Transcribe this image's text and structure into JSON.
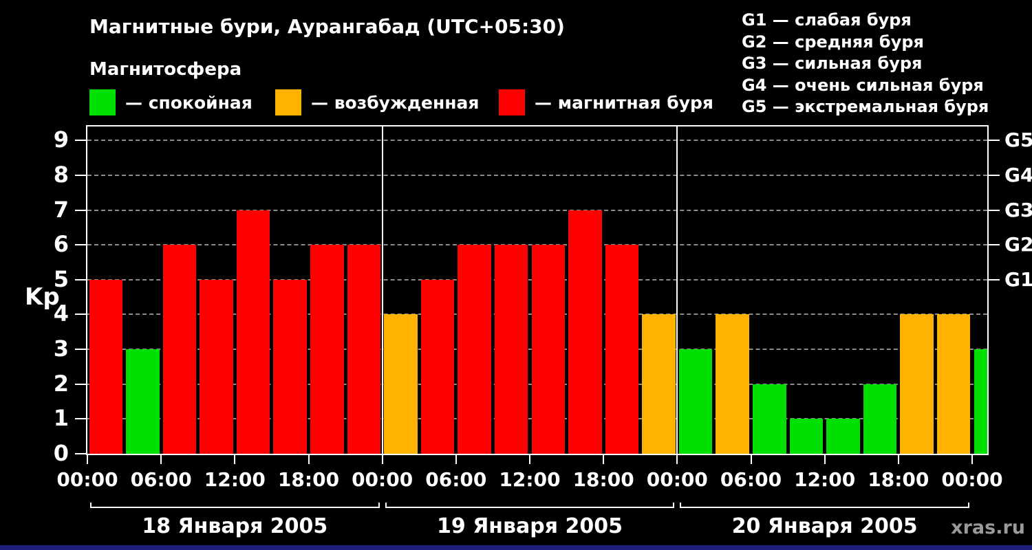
{
  "header": {
    "title": "Магнитные бури, Аурангабад (UTC+05:30)",
    "subtitle": "Магнитосфера"
  },
  "legend": {
    "items": [
      {
        "label": "— спокойная",
        "color": "#00e000",
        "key": "quiet"
      },
      {
        "label": "— возбужденная",
        "color": "#ffb300",
        "key": "excited"
      },
      {
        "label": "— магнитная буря",
        "color": "#ff0000",
        "key": "storm"
      }
    ]
  },
  "g_scale": {
    "items": [
      "G1 — слабая буря",
      "G2 — средняя буря",
      "G3 — сильная буря",
      "G4 — очень сильная буря",
      "G5 — экстремальная буря"
    ]
  },
  "watermark": "xras.ru",
  "chart_data": {
    "type": "bar",
    "title": "Магнитные бури, Аурангабад (UTC+05:30)",
    "ylabel": "Kp",
    "ylim": [
      0,
      9.4
    ],
    "yticks": [
      0,
      1,
      2,
      3,
      4,
      5,
      6,
      7,
      8,
      9
    ],
    "right_axis_ticks": [
      {
        "label": "G1",
        "value": 5
      },
      {
        "label": "G2",
        "value": 6
      },
      {
        "label": "G3",
        "value": 7
      },
      {
        "label": "G4",
        "value": 8
      },
      {
        "label": "G5",
        "value": 9
      }
    ],
    "grid": "dashed-horizontal",
    "bar_interval_hours": 3,
    "x_tick_labels": [
      "00:00",
      "06:00",
      "12:00",
      "18:00",
      "00:00",
      "06:00",
      "12:00",
      "18:00",
      "00:00",
      "06:00",
      "12:00",
      "18:00",
      "00:00"
    ],
    "color_thresholds": {
      "quiet_max": 3,
      "excited_max": 4
    },
    "colors": {
      "quiet": "#00e000",
      "excited": "#ffb300",
      "storm": "#ff0000"
    },
    "days": [
      {
        "date": "18 Января 2005",
        "kp": [
          5,
          3,
          6,
          5,
          7,
          5,
          6,
          6
        ]
      },
      {
        "date": "19 Января 2005",
        "kp": [
          4,
          5,
          6,
          6,
          6,
          7,
          6,
          4
        ]
      },
      {
        "date": "20 Января 2005",
        "kp": [
          3,
          4,
          2,
          1,
          1,
          2,
          4,
          4
        ]
      }
    ],
    "next_partial": {
      "kp": 3
    }
  }
}
